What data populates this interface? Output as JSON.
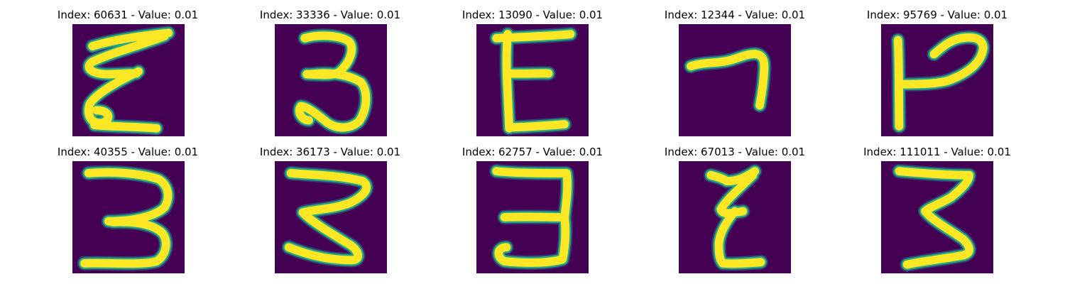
{
  "colors": {
    "background": "#440154",
    "stroke_fill": "#fde725",
    "stroke_edge": "#22a884",
    "stroke_halo": "#2c728e"
  },
  "panels": [
    {
      "title": "Index: 60631 - Value: 0.01",
      "glyph": "curly-z-like-handwritten-character"
    },
    {
      "title": "Index: 33336 - Value: 0.01",
      "glyph": "handwritten-3"
    },
    {
      "title": "Index: 13090 - Value: 0.01",
      "glyph": "handwritten-E"
    },
    {
      "title": "Index: 12344 - Value: 0.01",
      "glyph": "handwritten-7"
    },
    {
      "title": "Index: 95769 - Value: 0.01",
      "glyph": "handwritten-P-like-character"
    },
    {
      "title": "Index: 40355 - Value: 0.01",
      "glyph": "handwritten-3"
    },
    {
      "title": "Index: 36173 - Value: 0.01",
      "glyph": "handwritten-3"
    },
    {
      "title": "Index: 62757 - Value: 0.01",
      "glyph": "handwritten-3"
    },
    {
      "title": "Index: 67013 - Value: 0.01",
      "glyph": "handwritten-z-like-character"
    },
    {
      "title": "Index: 111011 - Value: 0.01",
      "glyph": "handwritten-3"
    }
  ]
}
